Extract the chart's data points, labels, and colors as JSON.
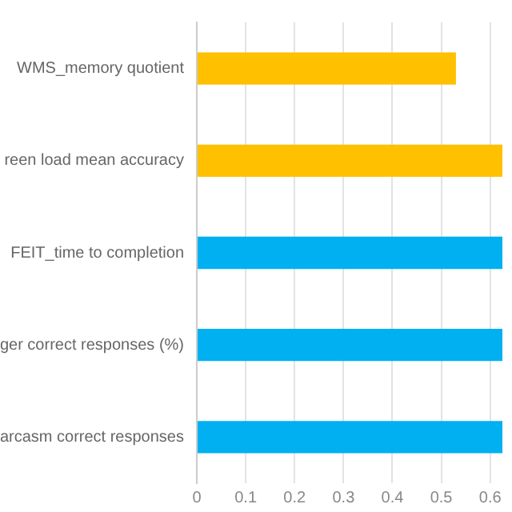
{
  "chart_data": {
    "type": "bar",
    "orientation": "horizontal",
    "categories": [
      "WMS_memory quotient",
      "reen load mean accuracy",
      "FEIT_time to completion",
      "ger correct responses (%)",
      "arcasm correct responses"
    ],
    "values": [
      0.53,
      0.625,
      0.625,
      0.625,
      0.625
    ],
    "colors": [
      "#ffc000",
      "#ffc000",
      "#00b0f0",
      "#00b0f0",
      "#00b0f0"
    ],
    "xlim": [
      0,
      0.625
    ],
    "xticks": [
      0,
      0.1,
      0.2,
      0.3,
      0.4,
      0.5,
      0.6
    ],
    "grid": "x",
    "legend": false
  }
}
